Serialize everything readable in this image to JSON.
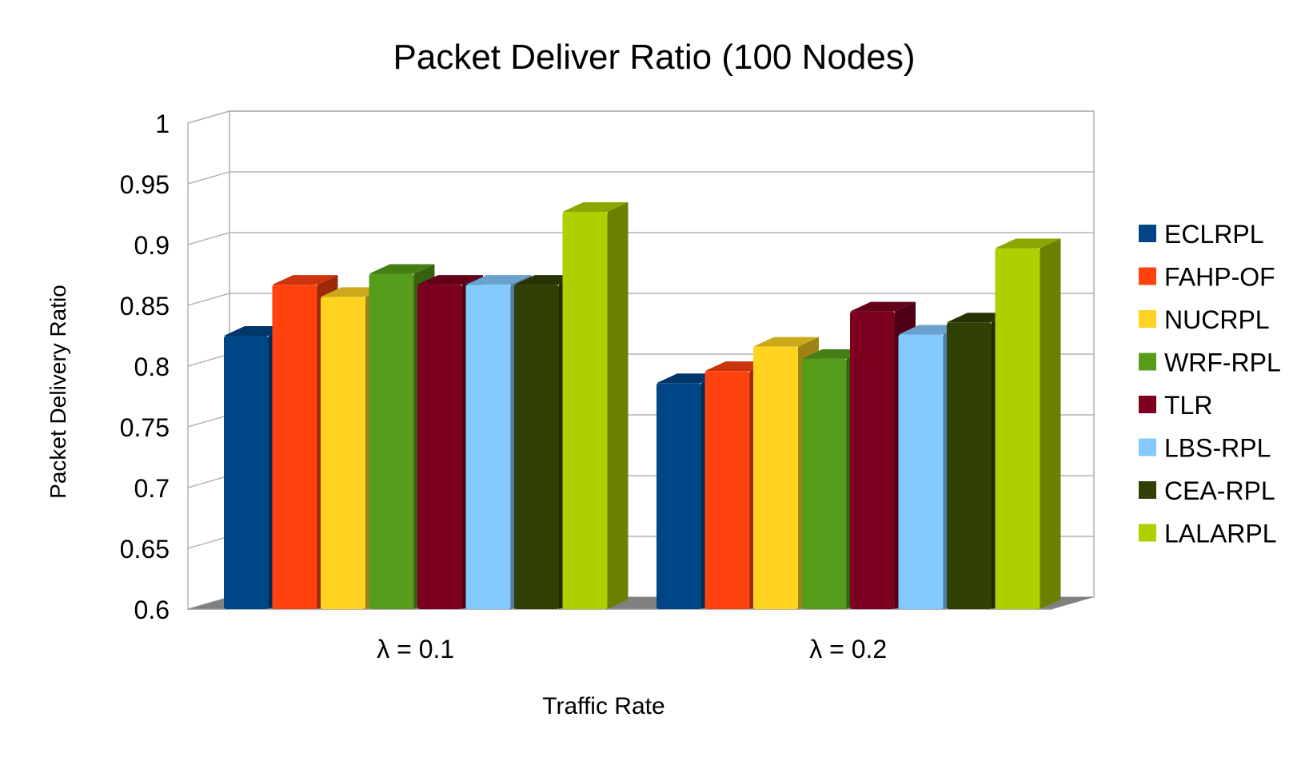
{
  "chart_data": {
    "type": "bar",
    "title": "Packet Deliver Ratio (100 Nodes)",
    "xlabel": "Traffic Rate",
    "ylabel": "Packet Delivery Ratio",
    "ylim": [
      0.6,
      1
    ],
    "yticks": [
      "0.6",
      "0.65",
      "0.7",
      "0.75",
      "0.8",
      "0.85",
      "0.9",
      "0.95",
      "1"
    ],
    "categories": [
      "λ = 0.1",
      "λ = 0.2"
    ],
    "grid": true,
    "legend_position": "right",
    "series": [
      {
        "name": "ECLRPL",
        "color": "#004586",
        "values": [
          0.825,
          0.786
        ]
      },
      {
        "name": "FAHP-OF",
        "color": "#ff420e",
        "values": [
          0.867,
          0.796
        ]
      },
      {
        "name": "NUCRPL",
        "color": "#ffd320",
        "values": [
          0.857,
          0.816
        ]
      },
      {
        "name": "WRF-RPL",
        "color": "#579d1c",
        "values": [
          0.876,
          0.806
        ]
      },
      {
        "name": "TLR",
        "color": "#7e0021",
        "values": [
          0.867,
          0.845
        ]
      },
      {
        "name": "LBS-RPL",
        "color": "#83caff",
        "values": [
          0.867,
          0.826
        ]
      },
      {
        "name": "CEA-RPL",
        "color": "#314004",
        "values": [
          0.867,
          0.836
        ]
      },
      {
        "name": "LALARPL",
        "color": "#aecf00",
        "values": [
          0.927,
          0.897
        ]
      }
    ]
  }
}
